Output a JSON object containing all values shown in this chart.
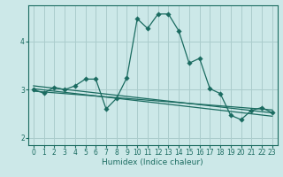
{
  "title": "",
  "xlabel": "Humidex (Indice chaleur)",
  "bg_color": "#cce8e8",
  "line_color": "#1a6b60",
  "grid_color": "#aacccc",
  "spine_color": "#1a6b60",
  "xlim": [
    -0.5,
    23.5
  ],
  "ylim": [
    1.85,
    4.75
  ],
  "yticks": [
    2,
    3,
    4
  ],
  "xticks": [
    0,
    1,
    2,
    3,
    4,
    5,
    6,
    7,
    8,
    9,
    10,
    11,
    12,
    13,
    14,
    15,
    16,
    17,
    18,
    19,
    20,
    21,
    22,
    23
  ],
  "series1_x": [
    0,
    1,
    2,
    3,
    4,
    5,
    6,
    7,
    8,
    9,
    10,
    11,
    12,
    13,
    14,
    15,
    16,
    17,
    18,
    19,
    20,
    21,
    22,
    23
  ],
  "series1_y": [
    3.0,
    2.93,
    3.05,
    3.0,
    3.08,
    3.22,
    3.22,
    2.6,
    2.82,
    3.25,
    4.47,
    4.27,
    4.57,
    4.57,
    4.22,
    3.55,
    3.65,
    3.02,
    2.92,
    2.47,
    2.38,
    2.57,
    2.63,
    2.52
  ],
  "line2_x": [
    0,
    23
  ],
  "line2_y": [
    3.08,
    2.52
  ],
  "line3_x": [
    0,
    23
  ],
  "line3_y": [
    3.02,
    2.45
  ],
  "line4_x": [
    0,
    23
  ],
  "line4_y": [
    2.97,
    2.58
  ],
  "tick_fontsize": 5.5,
  "xlabel_fontsize": 6.5
}
